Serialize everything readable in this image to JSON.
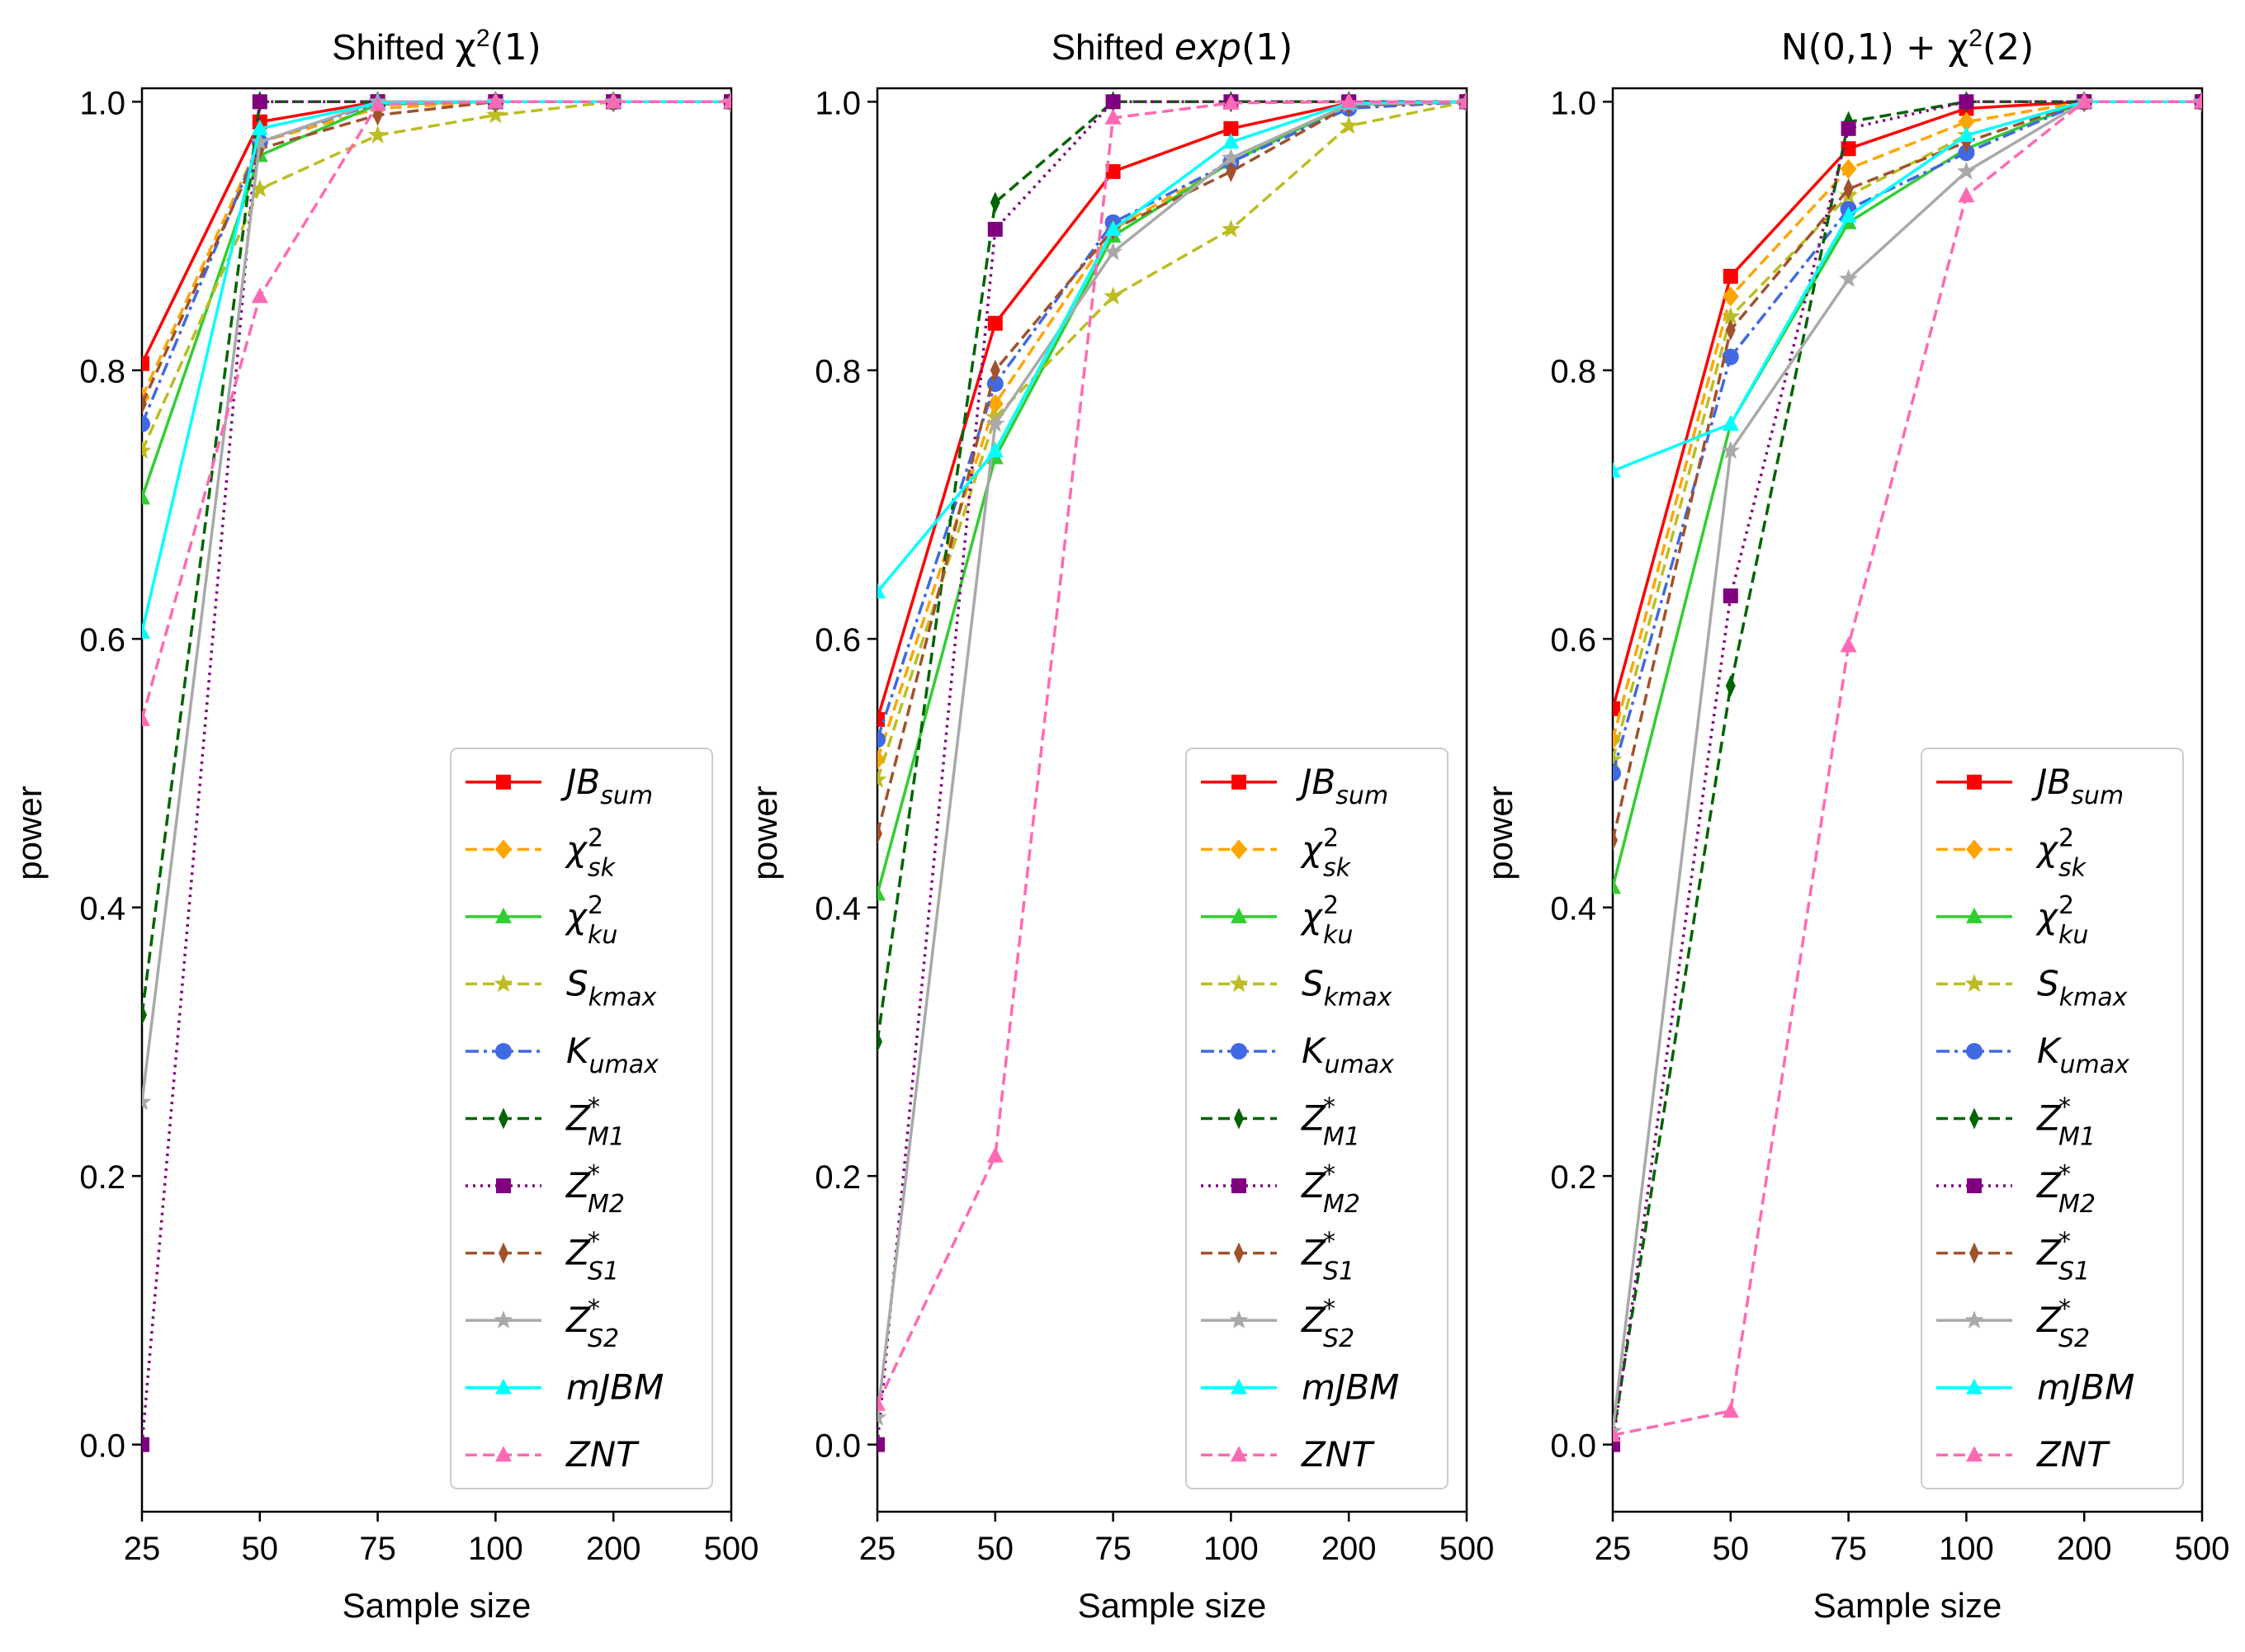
{
  "shared": {
    "x_ticks": [
      "25",
      "50",
      "75",
      "100",
      "200",
      "500"
    ],
    "y_ticks": [
      "0.0",
      "0.2",
      "0.4",
      "0.6",
      "0.8",
      "1.0"
    ],
    "xlabel": "Sample size",
    "ylabel": "power",
    "ylim": [
      -0.05,
      1.01
    ]
  },
  "legend_labels": [
    {
      "base": "JB",
      "sup": "",
      "sub": "sum"
    },
    {
      "base": "χ",
      "sup": "2",
      "sub": "sk"
    },
    {
      "base": "χ",
      "sup": "2",
      "sub": "ku"
    },
    {
      "base": "S",
      "sup": "",
      "sub": "kmax"
    },
    {
      "base": "K",
      "sup": "",
      "sub": "umax"
    },
    {
      "base": "Z",
      "sup": "*",
      "sub": "M1"
    },
    {
      "base": "Z",
      "sup": "*",
      "sub": "M2"
    },
    {
      "base": "Z",
      "sup": "*",
      "sub": "S1"
    },
    {
      "base": "Z",
      "sup": "*",
      "sub": "S2"
    },
    {
      "base": "mJBM",
      "sup": "",
      "sub": ""
    },
    {
      "base": "ZNT",
      "sup": "",
      "sub": ""
    }
  ],
  "series_styles": [
    {
      "name": "JB_sum",
      "color": "#ff0000",
      "dash": "solid",
      "marker": "square"
    },
    {
      "name": "chi2_sk",
      "color": "#ffa500",
      "dash": "dashed",
      "marker": "diamond"
    },
    {
      "name": "chi2_ku",
      "color": "#32cd32",
      "dash": "solid",
      "marker": "triangle"
    },
    {
      "name": "S_kmax",
      "color": "#bcbd22",
      "dash": "dashed",
      "marker": "star"
    },
    {
      "name": "K_umax",
      "color": "#4169e1",
      "dash": "dashdot",
      "marker": "circle"
    },
    {
      "name": "Z*_M1",
      "color": "#006400",
      "dash": "dashed",
      "marker": "thin_diamond"
    },
    {
      "name": "Z*_M2",
      "color": "#800080",
      "dash": "dotted",
      "marker": "square"
    },
    {
      "name": "Z*_S1",
      "color": "#a0522d",
      "dash": "dashed",
      "marker": "thin_diamond"
    },
    {
      "name": "Z*_S2",
      "color": "#a9a9a9",
      "dash": "solid",
      "marker": "star"
    },
    {
      "name": "mJBM",
      "color": "#00ffff",
      "dash": "solid",
      "marker": "triangle"
    },
    {
      "name": "ZNT",
      "color": "#ff69b4",
      "dash": "dashed",
      "marker": "triangle"
    }
  ],
  "chart_data": [
    {
      "type": "line",
      "title": {
        "prefix": "Shifted ",
        "math": "χ",
        "sup": "2",
        "suffix": "(1)"
      },
      "categories": [
        "25",
        "50",
        "75",
        "100",
        "200",
        "500"
      ],
      "xlabel": "Sample size",
      "ylabel": "power",
      "ylim": [
        -0.05,
        1.01
      ],
      "series": [
        {
          "name": "JB_sum",
          "values": [
            0.805,
            0.985,
            1.0,
            1.0,
            1.0,
            1.0
          ]
        },
        {
          "name": "chi2_sk",
          "values": [
            0.78,
            0.97,
            0.995,
            1.0,
            1.0,
            1.0
          ]
        },
        {
          "name": "chi2_ku",
          "values": [
            0.705,
            0.96,
            0.998,
            1.0,
            1.0,
            1.0
          ]
        },
        {
          "name": "S_kmax",
          "values": [
            0.74,
            0.935,
            0.975,
            0.99,
            1.0,
            1.0
          ]
        },
        {
          "name": "K_umax",
          "values": [
            0.76,
            0.97,
            0.999,
            1.0,
            1.0,
            1.0
          ]
        },
        {
          "name": "Z*_M1",
          "values": [
            0.32,
            1.0,
            1.0,
            1.0,
            1.0,
            1.0
          ]
        },
        {
          "name": "Z*_M2",
          "values": [
            0.0,
            1.0,
            1.0,
            1.0,
            1.0,
            1.0
          ]
        },
        {
          "name": "Z*_S1",
          "values": [
            0.775,
            0.965,
            0.99,
            1.0,
            1.0,
            1.0
          ]
        },
        {
          "name": "Z*_S2",
          "values": [
            0.255,
            0.97,
            1.0,
            1.0,
            1.0,
            1.0
          ]
        },
        {
          "name": "mJBM",
          "values": [
            0.605,
            0.98,
            0.999,
            1.0,
            1.0,
            1.0
          ]
        },
        {
          "name": "ZNT",
          "values": [
            0.54,
            0.855,
            0.998,
            1.0,
            1.0,
            1.0
          ]
        }
      ]
    },
    {
      "type": "line",
      "title": {
        "prefix": "Shifted ",
        "math": "exp",
        "sup": "",
        "suffix": "(1)"
      },
      "categories": [
        "25",
        "50",
        "75",
        "100",
        "200",
        "500"
      ],
      "xlabel": "Sample size",
      "ylabel": "power",
      "ylim": [
        -0.05,
        1.01
      ],
      "series": [
        {
          "name": "JB_sum",
          "values": [
            0.54,
            0.835,
            0.948,
            0.98,
            0.999,
            1.0
          ]
        },
        {
          "name": "chi2_sk",
          "values": [
            0.51,
            0.775,
            0.905,
            0.955,
            0.998,
            1.0
          ]
        },
        {
          "name": "chi2_ku",
          "values": [
            0.41,
            0.735,
            0.9,
            0.955,
            0.998,
            1.0
          ]
        },
        {
          "name": "S_kmax",
          "values": [
            0.495,
            0.765,
            0.855,
            0.905,
            0.982,
            1.0
          ]
        },
        {
          "name": "K_umax",
          "values": [
            0.525,
            0.79,
            0.91,
            0.955,
            0.995,
            1.0
          ]
        },
        {
          "name": "Z*_M1",
          "values": [
            0.3,
            0.925,
            1.0,
            1.0,
            1.0,
            1.0
          ]
        },
        {
          "name": "Z*_M2",
          "values": [
            0.0,
            0.905,
            1.0,
            1.0,
            1.0,
            1.0
          ]
        },
        {
          "name": "Z*_S1",
          "values": [
            0.455,
            0.8,
            0.905,
            0.948,
            0.997,
            1.0
          ]
        },
        {
          "name": "Z*_S2",
          "values": [
            0.02,
            0.76,
            0.888,
            0.958,
            0.998,
            1.0
          ]
        },
        {
          "name": "mJBM",
          "values": [
            0.635,
            0.74,
            0.905,
            0.97,
            0.999,
            1.0
          ]
        },
        {
          "name": "ZNT",
          "values": [
            0.03,
            0.215,
            0.988,
            0.999,
            1.0,
            1.0
          ]
        }
      ]
    },
    {
      "type": "line",
      "title": {
        "prefix": "",
        "math": "N(0,1) + χ",
        "sup": "2",
        "suffix": "(2)"
      },
      "categories": [
        "25",
        "50",
        "75",
        "100",
        "200",
        "500"
      ],
      "xlabel": "Sample size",
      "ylabel": "power",
      "ylim": [
        -0.05,
        1.01
      ],
      "series": [
        {
          "name": "JB_sum",
          "values": [
            0.548,
            0.87,
            0.965,
            0.995,
            1.0,
            1.0
          ]
        },
        {
          "name": "chi2_sk",
          "values": [
            0.525,
            0.855,
            0.95,
            0.985,
            1.0,
            1.0
          ]
        },
        {
          "name": "chi2_ku",
          "values": [
            0.415,
            0.76,
            0.91,
            0.965,
            1.0,
            1.0
          ]
        },
        {
          "name": "S_kmax",
          "values": [
            0.51,
            0.84,
            0.93,
            0.975,
            1.0,
            1.0
          ]
        },
        {
          "name": "K_umax",
          "values": [
            0.5,
            0.81,
            0.92,
            0.962,
            1.0,
            1.0
          ]
        },
        {
          "name": "Z*_M1",
          "values": [
            0.005,
            0.565,
            0.985,
            1.0,
            1.0,
            1.0
          ]
        },
        {
          "name": "Z*_M2",
          "values": [
            0.0,
            0.632,
            0.98,
            1.0,
            1.0,
            1.0
          ]
        },
        {
          "name": "Z*_S1",
          "values": [
            0.45,
            0.83,
            0.935,
            0.97,
            1.0,
            1.0
          ]
        },
        {
          "name": "Z*_S2",
          "values": [
            0.01,
            0.74,
            0.868,
            0.948,
            1.0,
            1.0
          ]
        },
        {
          "name": "mJBM",
          "values": [
            0.725,
            0.76,
            0.915,
            0.975,
            1.0,
            1.0
          ]
        },
        {
          "name": "ZNT",
          "values": [
            0.007,
            0.025,
            0.595,
            0.93,
            1.0,
            1.0
          ]
        }
      ]
    }
  ]
}
